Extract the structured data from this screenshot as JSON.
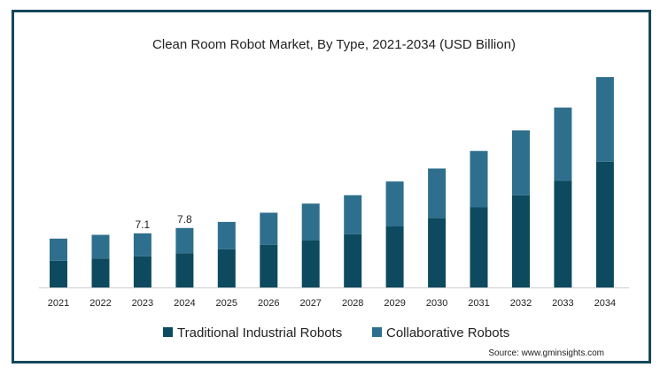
{
  "chart_data": {
    "type": "bar",
    "stacked": true,
    "title": "Clean Room Robot Market, By Type, 2021-2034 (USD Billion)",
    "xlabel": "",
    "ylabel": "",
    "categories": [
      "2021",
      "2022",
      "2023",
      "2024",
      "2025",
      "2026",
      "2027",
      "2028",
      "2029",
      "2030",
      "2031",
      "2032",
      "2033",
      "2034"
    ],
    "series": [
      {
        "name": "Traditional Industrial Robots",
        "color": "#0d4a5f",
        "values": [
          3.5,
          3.8,
          4.1,
          4.5,
          5.0,
          5.6,
          6.2,
          7.0,
          8.0,
          9.1,
          10.5,
          12.1,
          14.0,
          16.5
        ]
      },
      {
        "name": "Collaborative Robots",
        "color": "#2e6f8e",
        "values": [
          2.9,
          3.1,
          3.0,
          3.3,
          3.6,
          4.2,
          4.8,
          5.1,
          5.9,
          6.5,
          7.4,
          8.5,
          9.6,
          11.1
        ]
      }
    ],
    "data_labels": [
      {
        "category": "2023",
        "text": "7.1"
      },
      {
        "category": "2024",
        "text": "7.8"
      }
    ],
    "ylim": [
      0,
      29
    ],
    "grid": false,
    "legend_position": "bottom"
  },
  "source": "Source: www.gminsights.com"
}
